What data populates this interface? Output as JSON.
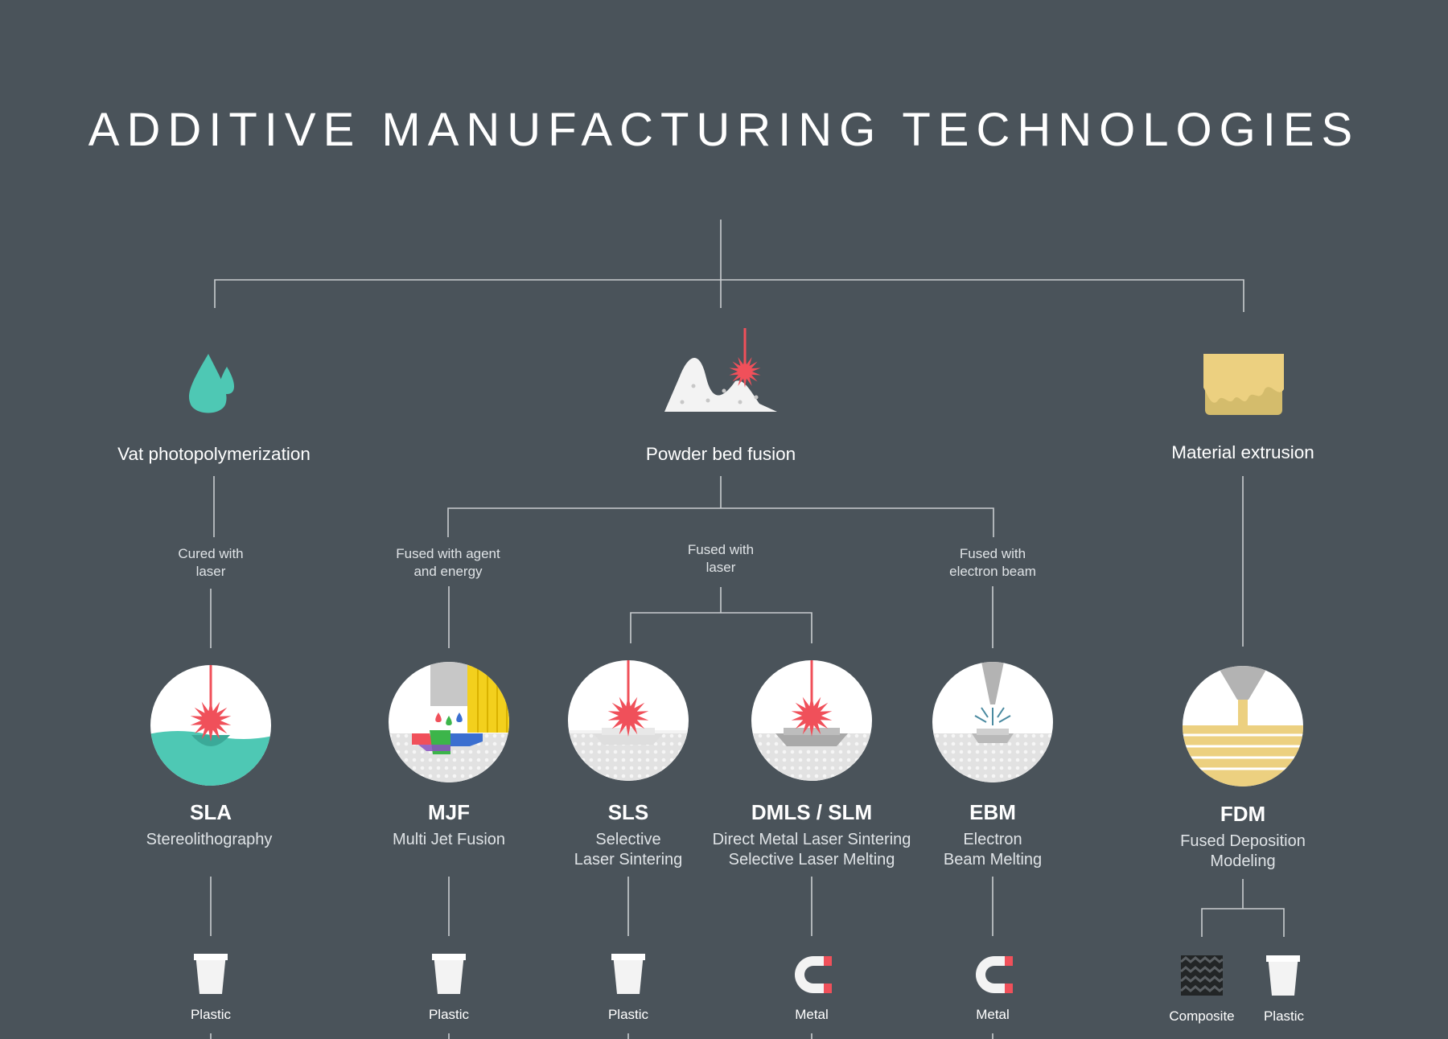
{
  "title": "ADDITIVE MANUFACTURING TECHNOLOGIES",
  "categories": [
    {
      "label": "Vat photopolymerization",
      "icon": "resin-drops-icon"
    },
    {
      "label": "Powder bed fusion",
      "icon": "powder-laser-icon"
    },
    {
      "label": "Material extrusion",
      "icon": "filament-block-icon"
    }
  ],
  "connectors": {
    "cured_laser": "Cured with\nlaser",
    "agent_energy": "Fused with agent\nand energy",
    "fused_laser": "Fused with\nlaser",
    "electron_beam": "Fused with\nelectron beam"
  },
  "technologies": [
    {
      "code": "SLA",
      "name": "Stereolithography",
      "icon": "sla-process-icon"
    },
    {
      "code": "MJF",
      "name": "Multi Jet Fusion",
      "icon": "mjf-process-icon"
    },
    {
      "code": "SLS",
      "name": "Selective\nLaser Sintering",
      "icon": "sls-process-icon"
    },
    {
      "code": "DMLS / SLM",
      "name": "Direct Metal Laser Sintering\nSelective Laser Melting",
      "icon": "dmls-process-icon"
    },
    {
      "code": "EBM",
      "name": "Electron\nBeam Melting",
      "icon": "ebm-process-icon"
    },
    {
      "code": "FDM",
      "name": "Fused Deposition\nModeling",
      "icon": "fdm-process-icon"
    }
  ],
  "materials": [
    {
      "label": "Plastic",
      "icon": "plastic-cup-icon"
    },
    {
      "label": "Plastic",
      "icon": "plastic-cup-icon"
    },
    {
      "label": "Plastic",
      "icon": "plastic-cup-icon"
    },
    {
      "label": "Metal",
      "icon": "magnet-icon"
    },
    {
      "label": "Metal",
      "icon": "magnet-icon"
    },
    {
      "label": "Composite",
      "icon": "composite-weave-icon"
    },
    {
      "label": "Plastic",
      "icon": "plastic-cup-icon"
    }
  ],
  "colors": {
    "background": "#4a535a",
    "lines": "#c9cdd0",
    "laser_red": "#f0505a",
    "resin_teal": "#4ec8b4",
    "filament_yellow": "#ecd080",
    "powder_white": "#f3f3f3"
  }
}
